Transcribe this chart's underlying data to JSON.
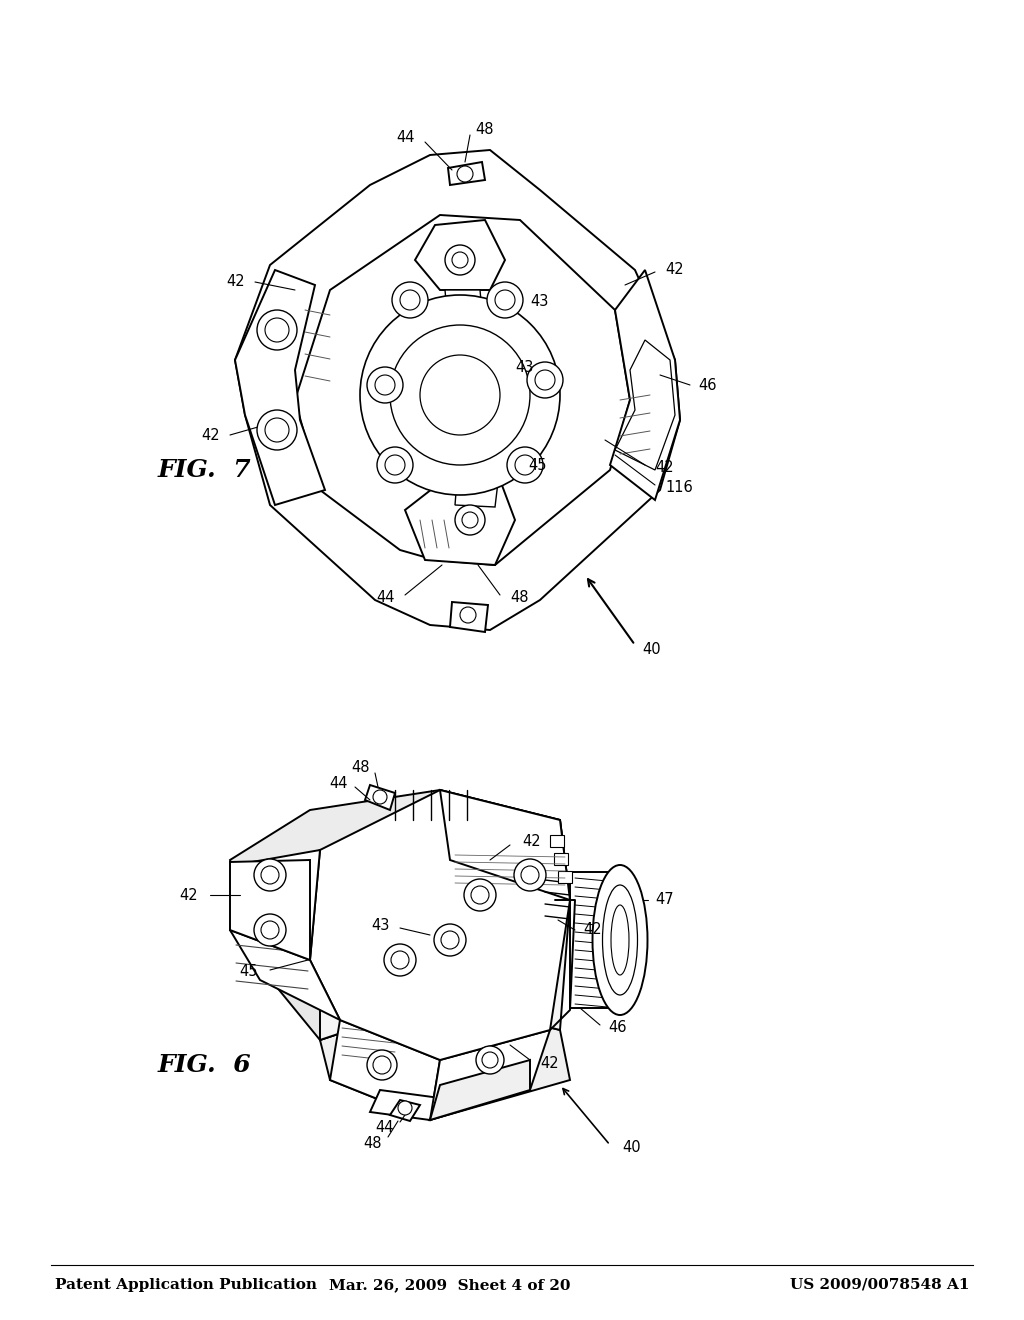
{
  "bg_color": "#ffffff",
  "header_left": "Patent Application Publication",
  "header_mid": "Mar. 26, 2009  Sheet 4 of 20",
  "header_right": "US 2009/0078548 A1",
  "header_fontsize": 11,
  "fig6_label": "FIG.  6",
  "fig7_label": "FIG.  7",
  "label_fontsize": 16,
  "ref_fontsize": 10.5,
  "line_color": "#000000",
  "lw_main": 1.4,
  "lw_thin": 0.7
}
